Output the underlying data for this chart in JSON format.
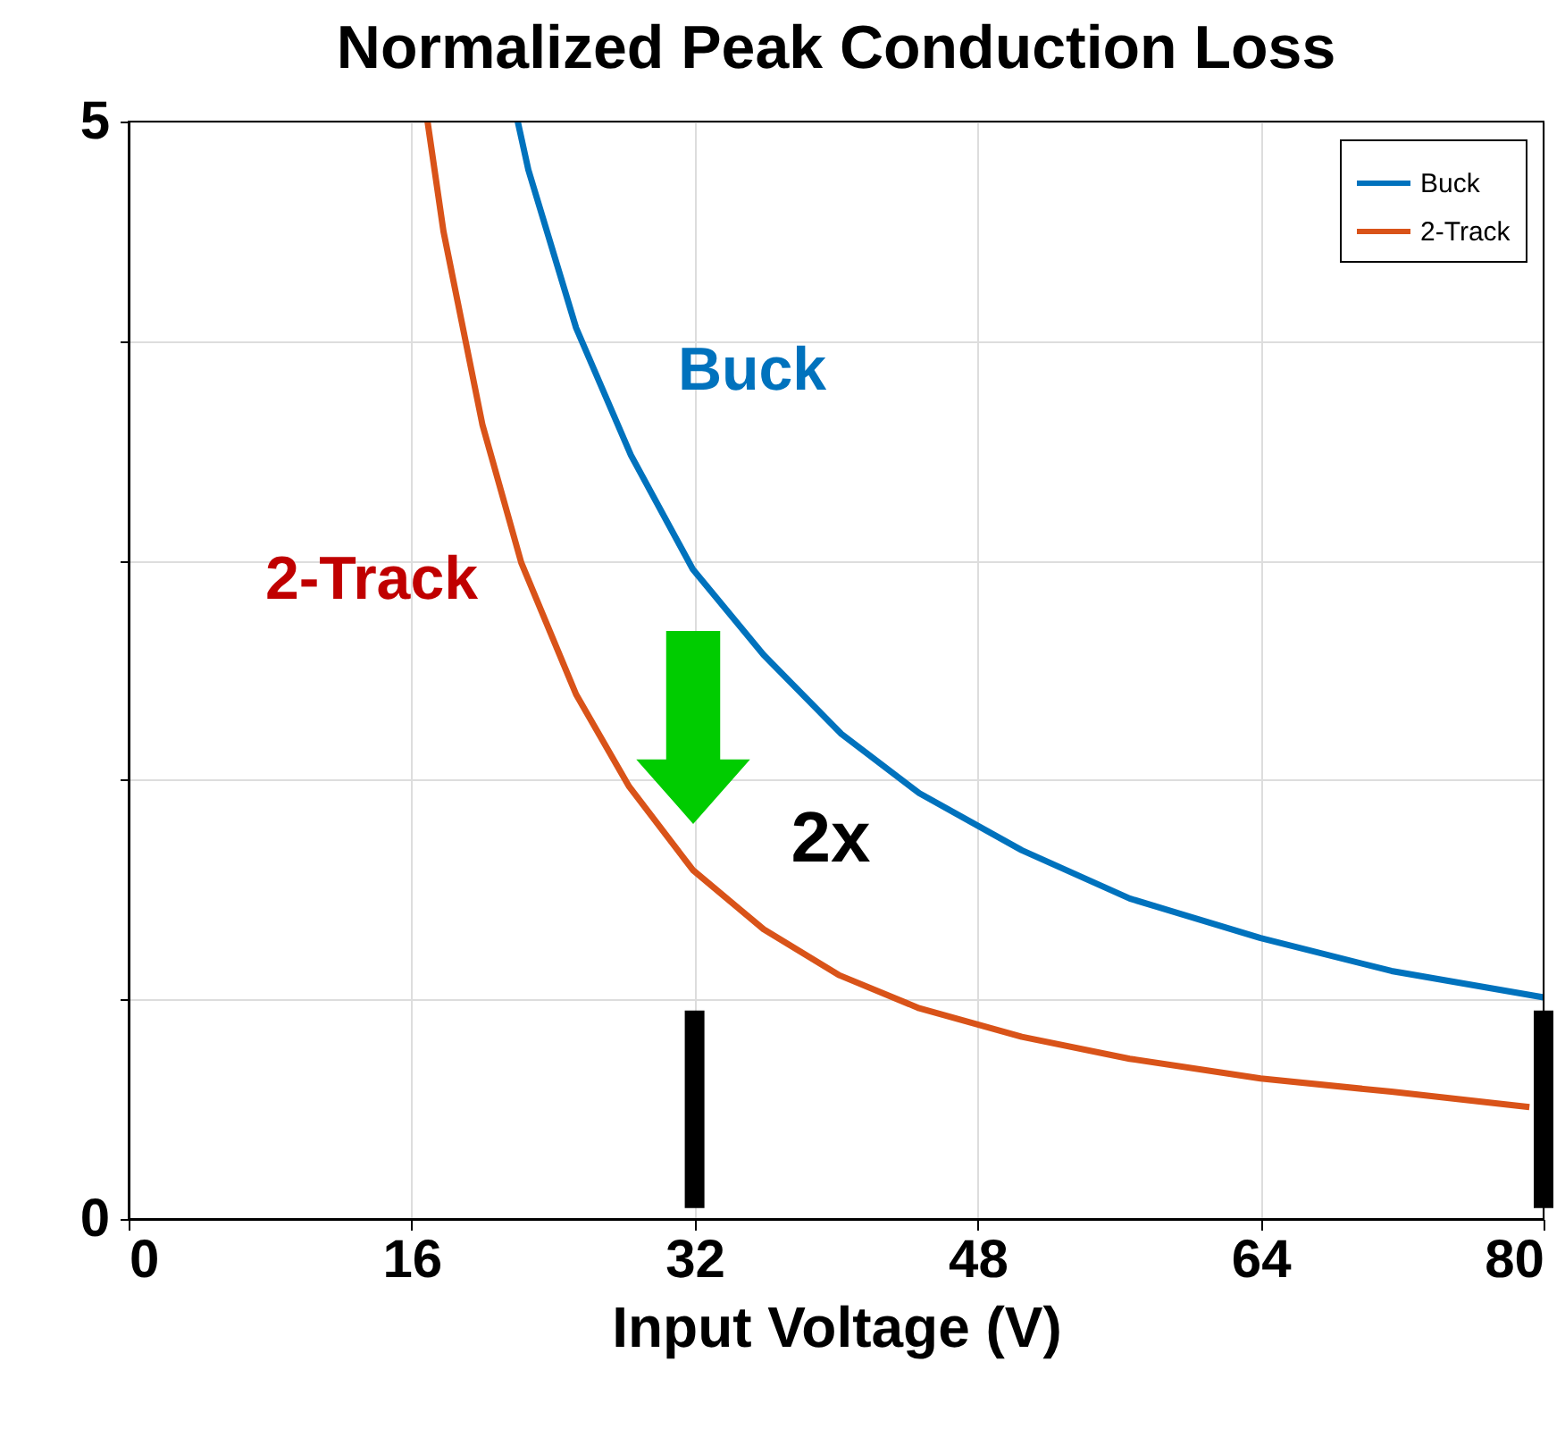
{
  "chart_data": {
    "type": "line",
    "title": "Normalized Peak Conduction Loss",
    "xlabel": "Input Voltage (V)",
    "xlim": [
      0,
      80
    ],
    "xticks": [
      0,
      16,
      32,
      48,
      64,
      80
    ],
    "ylim": [
      0,
      5
    ],
    "yticks": [
      0,
      {
        "value": 1,
        "label": null
      },
      {
        "value": 2,
        "label": null
      },
      {
        "value": 3,
        "label": null
      },
      {
        "value": 4,
        "label": null
      },
      5
    ],
    "grid": true,
    "legend": "top right",
    "line_style": "solid",
    "marker": "none",
    "series": [
      {
        "name": "Buck",
        "color": "#0072bd",
        "x": [
          22.0,
          22.6,
          25.3,
          28.4,
          31.9,
          35.9,
          40.3,
          44.7,
          50.5,
          56.6,
          64.0,
          71.4,
          80.0
        ],
        "values": [
          5.0,
          4.78,
          4.06,
          3.48,
          2.96,
          2.57,
          2.21,
          1.94,
          1.68,
          1.46,
          1.28,
          1.13,
          1.01
        ]
      },
      {
        "name": "2-Track",
        "color": "#d95319",
        "x": [
          16.9,
          17.8,
          20.0,
          22.2,
          25.3,
          28.3,
          31.9,
          35.9,
          40.2,
          44.7,
          50.5,
          56.6,
          64.0,
          71.4,
          79.2
        ],
        "values": [
          5.0,
          4.5,
          3.62,
          2.99,
          2.39,
          1.97,
          1.59,
          1.32,
          1.11,
          0.96,
          0.83,
          0.73,
          0.64,
          0.58,
          0.51
        ]
      }
    ],
    "ref_lines": [
      {
        "axis": "x",
        "value": 32,
        "color": "#000000"
      },
      {
        "axis": "x",
        "value": 80,
        "color": "#000000"
      }
    ],
    "annotations": [
      "Buck",
      "2-Track",
      "2x"
    ]
  }
}
